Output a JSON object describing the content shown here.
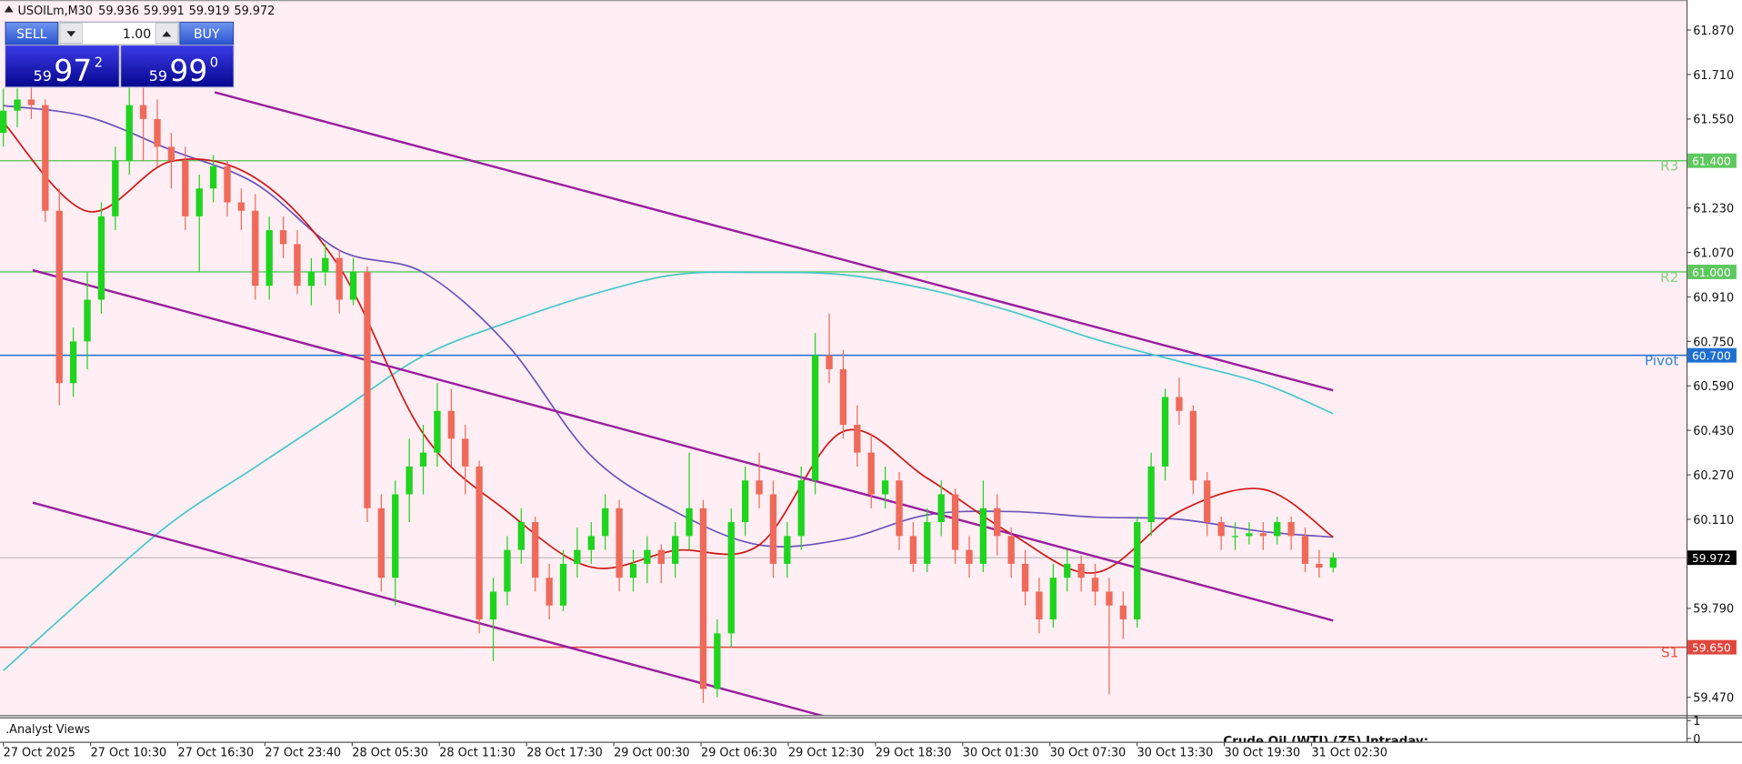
{
  "chart_data": {
    "type": "candlestick",
    "symbol": "USOILm,M30",
    "header_values": [
      59.936,
      59.991,
      59.919,
      59.972
    ],
    "up_color": "#1fd41f",
    "down_color": "#ef6a5a",
    "ohlc": [
      [
        61.5,
        61.66,
        61.45,
        61.58
      ],
      [
        61.58,
        61.66,
        61.52,
        61.62
      ],
      [
        61.62,
        61.68,
        61.55,
        61.6
      ],
      [
        61.6,
        61.62,
        61.18,
        61.22
      ],
      [
        61.22,
        61.3,
        60.52,
        60.6
      ],
      [
        60.6,
        60.8,
        60.55,
        60.75
      ],
      [
        60.75,
        61.0,
        60.65,
        60.9
      ],
      [
        60.9,
        61.25,
        60.85,
        61.2
      ],
      [
        61.2,
        61.45,
        61.15,
        61.4
      ],
      [
        61.4,
        61.68,
        61.35,
        61.6
      ],
      [
        61.6,
        61.7,
        61.4,
        61.55
      ],
      [
        61.55,
        61.62,
        61.38,
        61.45
      ],
      [
        61.45,
        61.5,
        61.3,
        61.4
      ],
      [
        61.4,
        61.45,
        61.15,
        61.2
      ],
      [
        61.2,
        61.35,
        61.0,
        61.3
      ],
      [
        61.3,
        61.42,
        61.25,
        61.38
      ],
      [
        61.38,
        61.4,
        61.2,
        61.25
      ],
      [
        61.25,
        61.3,
        61.15,
        61.22
      ],
      [
        61.22,
        61.28,
        60.9,
        60.95
      ],
      [
        60.95,
        61.2,
        60.9,
        61.15
      ],
      [
        61.15,
        61.2,
        61.05,
        61.1
      ],
      [
        61.1,
        61.15,
        60.92,
        60.95
      ],
      [
        60.95,
        61.05,
        60.88,
        61.0
      ],
      [
        61.0,
        61.1,
        60.95,
        61.05
      ],
      [
        61.05,
        61.08,
        60.85,
        60.9
      ],
      [
        60.9,
        61.05,
        60.88,
        61.0
      ],
      [
        61.0,
        61.02,
        60.1,
        60.15
      ],
      [
        60.15,
        60.2,
        59.85,
        59.9
      ],
      [
        59.9,
        60.25,
        59.8,
        60.2
      ],
      [
        60.2,
        60.4,
        60.1,
        60.3
      ],
      [
        60.3,
        60.45,
        60.2,
        60.35
      ],
      [
        60.35,
        60.6,
        60.3,
        60.5
      ],
      [
        60.5,
        60.58,
        60.3,
        60.4
      ],
      [
        60.4,
        60.45,
        60.2,
        60.3
      ],
      [
        60.3,
        60.32,
        59.7,
        59.75
      ],
      [
        59.75,
        59.9,
        59.6,
        59.85
      ],
      [
        59.85,
        60.05,
        59.8,
        60.0
      ],
      [
        60.0,
        60.15,
        59.95,
        60.1
      ],
      [
        60.1,
        60.12,
        59.85,
        59.9
      ],
      [
        59.9,
        59.95,
        59.75,
        59.8
      ],
      [
        59.8,
        60.0,
        59.78,
        59.95
      ],
      [
        59.95,
        60.08,
        59.9,
        60.0
      ],
      [
        60.0,
        60.1,
        59.95,
        60.05
      ],
      [
        60.05,
        60.2,
        60.0,
        60.15
      ],
      [
        60.15,
        60.18,
        59.85,
        59.9
      ],
      [
        59.9,
        60.0,
        59.85,
        59.95
      ],
      [
        59.95,
        60.05,
        59.88,
        60.0
      ],
      [
        60.0,
        60.02,
        59.88,
        59.95
      ],
      [
        59.95,
        60.1,
        59.9,
        60.05
      ],
      [
        60.05,
        60.35,
        60.0,
        60.15
      ],
      [
        60.15,
        60.18,
        59.45,
        59.5
      ],
      [
        59.5,
        59.75,
        59.47,
        59.7
      ],
      [
        59.7,
        60.15,
        59.65,
        60.1
      ],
      [
        60.1,
        60.3,
        60.05,
        60.25
      ],
      [
        60.25,
        60.35,
        60.15,
        60.2
      ],
      [
        60.2,
        60.25,
        59.9,
        59.95
      ],
      [
        59.95,
        60.1,
        59.9,
        60.05
      ],
      [
        60.05,
        60.3,
        60.0,
        60.25
      ],
      [
        60.25,
        60.78,
        60.2,
        60.7
      ],
      [
        60.7,
        60.85,
        60.6,
        60.65
      ],
      [
        60.65,
        60.72,
        60.4,
        60.45
      ],
      [
        60.45,
        60.52,
        60.3,
        60.35
      ],
      [
        60.35,
        60.42,
        60.15,
        60.2
      ],
      [
        60.2,
        60.3,
        60.15,
        60.25
      ],
      [
        60.25,
        60.28,
        60.0,
        60.05
      ],
      [
        60.05,
        60.1,
        59.92,
        59.95
      ],
      [
        59.95,
        60.15,
        59.92,
        60.1
      ],
      [
        60.1,
        60.25,
        60.05,
        60.2
      ],
      [
        60.2,
        60.22,
        59.95,
        60.0
      ],
      [
        60.0,
        60.05,
        59.9,
        59.95
      ],
      [
        59.95,
        60.25,
        59.92,
        60.15
      ],
      [
        60.15,
        60.2,
        59.98,
        60.05
      ],
      [
        60.05,
        60.08,
        59.9,
        59.95
      ],
      [
        59.95,
        60.0,
        59.8,
        59.85
      ],
      [
        59.85,
        59.9,
        59.7,
        59.75
      ],
      [
        59.75,
        59.95,
        59.72,
        59.9
      ],
      [
        59.9,
        60.0,
        59.85,
        59.95
      ],
      [
        59.95,
        59.98,
        59.85,
        59.9
      ],
      [
        59.9,
        59.95,
        59.8,
        59.85
      ],
      [
        59.85,
        59.9,
        59.48,
        59.8
      ],
      [
        59.8,
        59.85,
        59.68,
        59.75
      ],
      [
        59.75,
        60.12,
        59.72,
        60.1
      ],
      [
        60.1,
        60.35,
        60.05,
        60.3
      ],
      [
        60.3,
        60.58,
        60.25,
        60.55
      ],
      [
        60.55,
        60.62,
        60.45,
        60.5
      ],
      [
        60.5,
        60.52,
        60.2,
        60.25
      ],
      [
        60.25,
        60.28,
        60.05,
        60.1
      ],
      [
        60.1,
        60.12,
        60.0,
        60.05
      ],
      [
        60.05,
        60.1,
        60.0,
        60.05
      ],
      [
        60.05,
        60.1,
        60.02,
        60.06
      ],
      [
        60.06,
        60.1,
        60.0,
        60.05
      ],
      [
        60.05,
        60.12,
        60.02,
        60.1
      ],
      [
        60.1,
        60.12,
        60.0,
        60.05
      ],
      [
        60.05,
        60.08,
        59.92,
        59.95
      ],
      [
        59.95,
        60.0,
        59.9,
        59.936
      ],
      [
        59.936,
        59.991,
        59.919,
        59.972
      ]
    ],
    "x_labels": [
      "27 Oct 2025",
      "27 Oct 10:30",
      "27 Oct 16:30",
      "27 Oct 23:40",
      "28 Oct 05:30",
      "28 Oct 11:30",
      "28 Oct 17:30",
      "29 Oct 00:30",
      "29 Oct 06:30",
      "29 Oct 12:30",
      "29 Oct 18:30",
      "30 Oct 01:30",
      "30 Oct 07:30",
      "30 Oct 13:30",
      "30 Oct 19:30",
      "31 Oct 02:30"
    ],
    "ylim": [
      59.406,
      61.978
    ],
    "yticks": [
      {
        "value": 61.87,
        "label": "61.870"
      },
      {
        "value": 61.71,
        "label": "61.710"
      },
      {
        "value": 61.55,
        "label": "61.550"
      },
      {
        "value": 61.23,
        "label": "61.230"
      },
      {
        "value": 61.07,
        "label": "61.070"
      },
      {
        "value": 60.91,
        "label": "60.910"
      },
      {
        "value": 60.75,
        "label": "60.750"
      },
      {
        "value": 60.59,
        "label": "60.590"
      },
      {
        "value": 60.43,
        "label": "60.430"
      },
      {
        "value": 60.27,
        "label": "60.270"
      },
      {
        "value": 60.11,
        "label": "60.110"
      },
      {
        "value": 59.79,
        "label": "59.790"
      },
      {
        "value": 59.47,
        "label": "59.470"
      }
    ],
    "overlays": [
      {
        "color": "#45c8c8",
        "x": [
          0,
          6,
          12,
          18,
          24,
          30,
          36,
          42,
          48,
          54,
          60,
          66,
          72,
          78,
          84,
          90,
          95
        ],
        "values": [
          59.566,
          59.838,
          60.098,
          60.298,
          60.498,
          60.698,
          60.818,
          60.918,
          60.99,
          60.998,
          60.99,
          60.938,
          60.858,
          60.758,
          60.678,
          60.598,
          60.49
        ]
      },
      {
        "color": "#6a55bd",
        "x": [
          0,
          6,
          12,
          18,
          24,
          30,
          36,
          42,
          48,
          54,
          60,
          66,
          72,
          78,
          84,
          90,
          95
        ],
        "values": [
          61.598,
          61.558,
          61.438,
          61.318,
          61.078,
          60.998,
          60.738,
          60.338,
          60.138,
          60.018,
          60.038,
          60.126,
          60.138,
          60.118,
          60.11,
          60.066,
          60.046
        ]
      },
      {
        "color": "#d01818",
        "x": [
          0,
          6,
          12,
          18,
          24,
          30,
          36,
          42,
          48,
          54,
          60,
          66,
          72,
          78,
          84,
          90,
          95
        ],
        "values": [
          61.538,
          61.218,
          61.398,
          61.338,
          61.018,
          60.418,
          60.138,
          59.938,
          59.998,
          60.018,
          60.426,
          60.258,
          60.058,
          59.918,
          60.138,
          60.218,
          60.046
        ]
      }
    ],
    "trendlines": [
      {
        "color": "#9a1f9e",
        "x": [
          15.1,
          95
        ],
        "values": [
          61.646,
          60.574
        ]
      },
      {
        "color": "#9a1f9e",
        "x": [
          2.1,
          95
        ],
        "values": [
          61.006,
          59.746
        ]
      },
      {
        "color": "#9a1f9e",
        "x": [
          2.1,
          58.9
        ],
        "values": [
          60.17,
          59.398
        ]
      }
    ],
    "levels": [
      {
        "name": "R3",
        "value": 61.4,
        "label": "61.400",
        "color": "#5ec85e",
        "text_color": "#86d286"
      },
      {
        "name": "R2",
        "value": 61.0,
        "label": "61.000",
        "color": "#5ec85e",
        "text_color": "#86d286"
      },
      {
        "name": "Pivot",
        "value": 60.7,
        "label": "60.700",
        "color": "#1e6fd0",
        "text_color": "#2f86d6"
      },
      {
        "name": "S1",
        "value": 59.65,
        "label": "59.650",
        "color": "#e0463c",
        "text_color": "#e2574d"
      }
    ],
    "price_line": {
      "value": 59.972,
      "label": "59.972",
      "color": "#a8a8a8"
    },
    "trade_panel": {
      "sell_label": "SELL",
      "buy_label": "BUY",
      "lot": "1.00",
      "sell_price": [
        "59",
        "97",
        "2"
      ],
      "buy_price": [
        "59",
        "99",
        "0"
      ]
    },
    "subwindow": {
      "title": ".Analyst Views",
      "note": "Crude Oil (WTI) (Z5) Intraday:",
      "ylim": [
        0,
        1
      ],
      "yticks": [
        1,
        0
      ]
    }
  }
}
